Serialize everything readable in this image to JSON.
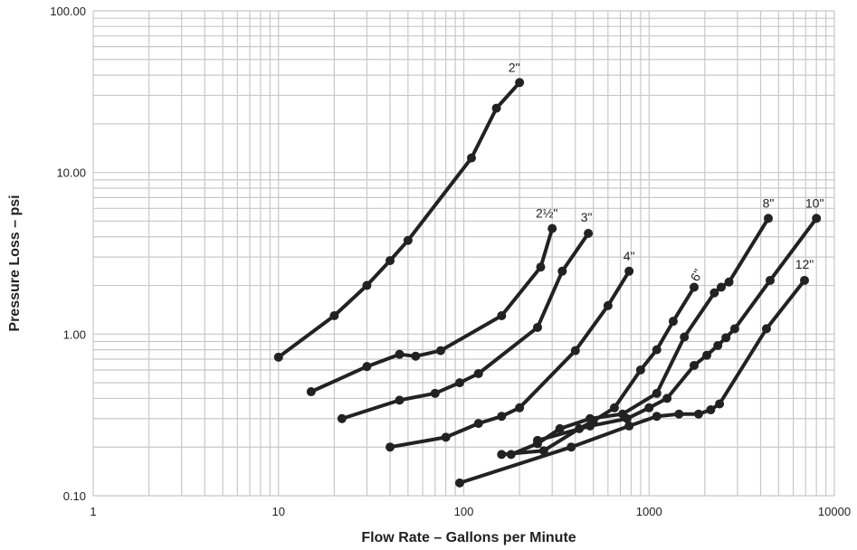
{
  "chart_data": {
    "type": "line",
    "title": "",
    "xlabel": "Flow Rate – Gallons per Minute",
    "ylabel": "Pressure Loss – psi",
    "x_scale": "log",
    "y_scale": "log",
    "xlim": [
      1,
      10000
    ],
    "ylim": [
      0.1,
      100
    ],
    "x_ticks": [
      1,
      10,
      100,
      1000,
      10000
    ],
    "x_tick_labels": [
      "1",
      "10",
      "100",
      "1000",
      "10000"
    ],
    "y_ticks": [
      0.1,
      1,
      10,
      100
    ],
    "y_tick_labels": [
      "0.10",
      "1.00",
      "10.00",
      "100.00"
    ],
    "grid": true,
    "legend": "none",
    "series": [
      {
        "name": "2\"",
        "x": [
          10,
          20,
          30,
          40,
          50,
          110,
          150,
          200
        ],
        "y": [
          0.72,
          1.3,
          2.0,
          2.85,
          3.8,
          12.3,
          25.0,
          36.0
        ]
      },
      {
        "name": "2½\"",
        "x": [
          15,
          30,
          45,
          55,
          75,
          160,
          260,
          300
        ],
        "y": [
          0.44,
          0.63,
          0.75,
          0.73,
          0.79,
          1.3,
          2.6,
          4.5
        ]
      },
      {
        "name": "3\"",
        "x": [
          22,
          45,
          70,
          95,
          120,
          250,
          340,
          470
        ],
        "y": [
          0.3,
          0.39,
          0.43,
          0.5,
          0.57,
          1.1,
          2.45,
          4.2
        ]
      },
      {
        "name": "4\"",
        "x": [
          40,
          80,
          120,
          160,
          200,
          400,
          600,
          780
        ],
        "y": [
          0.2,
          0.23,
          0.28,
          0.31,
          0.35,
          0.79,
          1.5,
          2.45
        ]
      },
      {
        "name": "6\"",
        "x": [
          160,
          270,
          420,
          500,
          650,
          900,
          1100,
          1350,
          1750
        ],
        "y": [
          0.18,
          0.19,
          0.26,
          0.29,
          0.35,
          0.6,
          0.8,
          1.2,
          1.95
        ]
      },
      {
        "name": "8\"",
        "x": [
          180,
          250,
          330,
          480,
          720,
          1100,
          1550,
          2250,
          2450,
          2700,
          4400
        ],
        "y": [
          0.18,
          0.21,
          0.26,
          0.3,
          0.32,
          0.43,
          0.96,
          1.8,
          1.95,
          2.1,
          5.2
        ]
      },
      {
        "name": "10\"",
        "x": [
          250,
          480,
          760,
          1000,
          1250,
          1750,
          2050,
          2350,
          2600,
          2900,
          4500,
          8000
        ],
        "y": [
          0.22,
          0.27,
          0.3,
          0.35,
          0.4,
          0.64,
          0.74,
          0.85,
          0.95,
          1.08,
          2.15,
          5.2
        ]
      },
      {
        "name": "12\"",
        "x": [
          95,
          380,
          780,
          1100,
          1450,
          1850,
          2150,
          2400,
          4300,
          6900
        ],
        "y": [
          0.12,
          0.2,
          0.27,
          0.31,
          0.32,
          0.32,
          0.34,
          0.37,
          1.08,
          2.15
        ]
      }
    ]
  },
  "series_labels": [
    {
      "text": "2\"",
      "anchor": [
        200,
        36.0
      ],
      "dx": -6,
      "dy": -12,
      "rotate": 0
    },
    {
      "text": "2½\"",
      "anchor": [
        300,
        4.5
      ],
      "dx": -6,
      "dy": -12,
      "rotate": 0
    },
    {
      "text": "3\"",
      "anchor": [
        470,
        4.2
      ],
      "dx": -2,
      "dy": -13,
      "rotate": 0
    },
    {
      "text": "4\"",
      "anchor": [
        780,
        2.45
      ],
      "dx": 0,
      "dy": -12,
      "rotate": 0
    },
    {
      "text": "6\"",
      "anchor": [
        1750,
        1.95
      ],
      "dx": 7,
      "dy": -11,
      "rotate": -62
    },
    {
      "text": "8\"",
      "anchor": [
        4400,
        5.2
      ],
      "dx": 0,
      "dy": -12,
      "rotate": 0
    },
    {
      "text": "10\"",
      "anchor": [
        8000,
        5.2
      ],
      "dx": -2,
      "dy": -12,
      "rotate": 0
    },
    {
      "text": "12\"",
      "anchor": [
        6900,
        2.15
      ],
      "dx": 0,
      "dy": -13,
      "rotate": 0
    }
  ]
}
